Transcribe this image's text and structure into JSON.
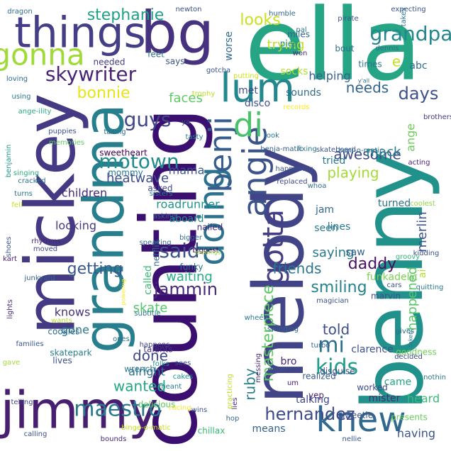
{
  "words": [
    {
      "text": "ella",
      "color": "#25a584",
      "vertical": false
    },
    {
      "text": "benny",
      "color": "#21918c",
      "vertical": true
    },
    {
      "text": "counting",
      "color": "#3a0f6f",
      "vertical": true
    },
    {
      "text": "melody",
      "color": "#414487",
      "vertical": true
    },
    {
      "text": "mickey",
      "color": "#443983",
      "vertical": true
    },
    {
      "text": "jimmy",
      "color": "#481f70",
      "vertical": false
    },
    {
      "text": "grandma",
      "color": "#277f8e",
      "vertical": true
    },
    {
      "text": "things",
      "color": "#433e85",
      "vertical": false
    },
    {
      "text": "bg",
      "color": "#46327e",
      "vertical": false
    },
    {
      "text": "knew",
      "color": "#31688e",
      "vertical": false
    },
    {
      "text": "lum",
      "color": "#23888e",
      "vertical": false
    },
    {
      "text": "angie",
      "color": "#3b528b",
      "vertical": true
    },
    {
      "text": "doing",
      "color": "#2c728e",
      "vertical": true
    },
    {
      "text": "benji",
      "color": "#365d8d",
      "vertical": true
    },
    {
      "text": "gonna",
      "color": "#a0da39",
      "vertical": false
    },
    {
      "text": "di",
      "color": "#4ac16d",
      "vertical": false
    },
    {
      "text": "maestro",
      "color": "#2a788e",
      "vertical": false
    },
    {
      "text": "gotta",
      "color": "#433e85",
      "vertical": true
    },
    {
      "text": "motown",
      "color": "#228c8d",
      "vertical": false
    },
    {
      "text": "skywriter",
      "color": "#482475",
      "vertical": false
    },
    {
      "text": "grandpa",
      "color": "#24868e",
      "vertical": false
    },
    {
      "text": "kids",
      "color": "#1f9e89",
      "vertical": false
    },
    {
      "text": "said",
      "color": "#3b528b",
      "vertical": false
    },
    {
      "text": "mi",
      "color": "#2e6f8e",
      "vertical": false
    },
    {
      "text": "guys",
      "color": "#404688",
      "vertical": false
    },
    {
      "text": "hernandez",
      "color": "#3e4989",
      "vertical": false
    },
    {
      "text": "jammin",
      "color": "#482878",
      "vertical": false
    },
    {
      "text": "stephanie",
      "color": "#1fa187",
      "vertical": false
    },
    {
      "text": "bonnie",
      "color": "#e7e419",
      "vertical": false
    },
    {
      "text": "days",
      "color": "#3b528b",
      "vertical": false
    },
    {
      "text": "masterpiece",
      "color": "#5ec962",
      "vertical": true
    },
    {
      "text": "needs",
      "color": "#33638d",
      "vertical": false
    },
    {
      "text": "looks",
      "color": "#cae11f",
      "vertical": false
    },
    {
      "text": "daddy",
      "color": "#471063",
      "vertical": false
    },
    {
      "text": "told",
      "color": "#3d4e8a",
      "vertical": false
    },
    {
      "text": "getting",
      "color": "#38588c",
      "vertical": false
    },
    {
      "text": "smiling",
      "color": "#26828e",
      "vertical": false
    },
    {
      "text": "friends",
      "color": "#2a768e",
      "vertical": false
    },
    {
      "text": "playing",
      "color": "#a5db36",
      "vertical": false
    },
    {
      "text": "awesome",
      "color": "#3e4989",
      "vertical": false
    },
    {
      "text": "done",
      "color": "#3f4788",
      "vertical": false
    },
    {
      "text": "wanted",
      "color": "#22a785",
      "vertical": false
    },
    {
      "text": "faces",
      "color": "#5ec962",
      "vertical": false
    },
    {
      "text": "happened",
      "color": "#56c667",
      "vertical": true
    },
    {
      "text": "ruby",
      "color": "#26828e",
      "vertical": true
    },
    {
      "text": "trying",
      "color": "#c2df23",
      "vertical": false
    },
    {
      "text": "e",
      "color": "#c8e020",
      "vertical": false
    },
    {
      "text": "ange",
      "color": "#6ccd5a",
      "vertical": true
    },
    {
      "text": "mack",
      "color": "#277f8e",
      "vertical": false
    },
    {
      "text": "merlin",
      "color": "#3b528b",
      "vertical": true
    },
    {
      "text": "heatwave",
      "color": "#3d4e8a",
      "vertical": false
    },
    {
      "text": "children",
      "color": "#482878",
      "vertical": false
    },
    {
      "text": "skate",
      "color": "#52c569",
      "vertical": false
    },
    {
      "text": "mama",
      "color": "#39568c",
      "vertical": false
    },
    {
      "text": "waiting",
      "color": "#26ad81",
      "vertical": false
    },
    {
      "text": "looking",
      "color": "#443a83",
      "vertical": false
    },
    {
      "text": "saying",
      "color": "#29798e",
      "vertical": false
    },
    {
      "text": "came",
      "color": "#21a685",
      "vertical": false
    },
    {
      "text": "heard",
      "color": "#3aba76",
      "vertical": false
    },
    {
      "text": "having",
      "color": "#3b528b",
      "vertical": false
    },
    {
      "text": "alright",
      "color": "#2c728e",
      "vertical": false
    },
    {
      "text": "knows",
      "color": "#46337f",
      "vertical": false
    },
    {
      "text": "abc",
      "color": "#2e6e8e",
      "vertical": false
    },
    {
      "text": "helping",
      "color": "#34618d",
      "vertical": false
    },
    {
      "text": "mister",
      "color": "#472c7a",
      "vertical": false
    },
    {
      "text": "roadrunner",
      "color": "#1f948c",
      "vertical": false
    },
    {
      "text": "funkadelic",
      "color": "#7ad151",
      "vertical": false
    },
    {
      "text": "talking",
      "color": "#3f4788",
      "vertical": false
    },
    {
      "text": "socks",
      "color": "#b5de2b",
      "vertical": false
    },
    {
      "text": "gone",
      "color": "#2a788e",
      "vertical": false
    },
    {
      "text": "disco",
      "color": "#3b528b",
      "vertical": false
    },
    {
      "text": "sounds",
      "color": "#2f6c8e",
      "vertical": false
    },
    {
      "text": "met",
      "color": "#3e4989",
      "vertical": false
    },
    {
      "text": "lines",
      "color": "#2a788e",
      "vertical": false
    },
    {
      "text": "called",
      "color": "#3dbc74",
      "vertical": true
    },
    {
      "text": "turned",
      "color": "#2c728e",
      "vertical": false
    },
    {
      "text": "saw",
      "color": "#33638d",
      "vertical": false
    },
    {
      "text": "aboard",
      "color": "#21918c",
      "vertical": false
    },
    {
      "text": "means",
      "color": "#34618d",
      "vertical": false
    },
    {
      "text": "worse",
      "color": "#2f6b8e",
      "vertical": true
    },
    {
      "text": "tried",
      "color": "#29798e",
      "vertical": false
    },
    {
      "text": "jam",
      "color": "#31688e",
      "vertical": false
    },
    {
      "text": "seen",
      "color": "#29798e",
      "vertical": false
    },
    {
      "text": "clarence",
      "color": "#3b528b",
      "vertical": false
    },
    {
      "text": "bro",
      "color": "#482475",
      "vertical": false
    },
    {
      "text": "ai",
      "color": "#b5de2b",
      "vertical": true
    },
    {
      "text": "says",
      "color": "#3b528b",
      "vertical": false
    },
    {
      "text": "feet",
      "color": "#2e6e8e",
      "vertical": false
    },
    {
      "text": "needed",
      "color": "#433e85",
      "vertical": false
    },
    {
      "text": "miles",
      "color": "#33638d",
      "vertical": false
    },
    {
      "text": "bout",
      "color": "#2e6f8e",
      "vertical": false
    },
    {
      "text": "times",
      "color": "#2a788e",
      "vertical": false
    },
    {
      "text": "pies",
      "color": "#20928c",
      "vertical": false
    },
    {
      "text": "funky",
      "color": "#2c728e",
      "vertical": false
    },
    {
      "text": "asked",
      "color": "#3f4788",
      "vertical": false
    },
    {
      "text": "mommy",
      "color": "#2a788e",
      "vertical": false
    },
    {
      "text": "sweetheart",
      "color": "#440154",
      "vertical": false
    },
    {
      "text": "netflix",
      "color": "#2f6b8e",
      "vertical": true
    },
    {
      "text": "nailed",
      "color": "#472d7b",
      "vertical": false
    },
    {
      "text": "talents",
      "color": "#443983",
      "vertical": false
    },
    {
      "text": "wrench",
      "color": "#2a788e",
      "vertical": false
    },
    {
      "text": "cookies",
      "color": "#2e6f8e",
      "vertical": false
    },
    {
      "text": "skatepark",
      "color": "#277f8e",
      "vertical": false
    },
    {
      "text": "lives",
      "color": "#3a548c",
      "vertical": false
    },
    {
      "text": "delicious",
      "color": "#5ec962",
      "vertical": false
    },
    {
      "text": "goodness",
      "color": "#73d056",
      "vertical": false
    },
    {
      "text": "worked",
      "color": "#3e4989",
      "vertical": false
    },
    {
      "text": "presents",
      "color": "#6ccd5a",
      "vertical": false
    },
    {
      "text": "sweetie",
      "color": "#3d4e8a",
      "vertical": false
    },
    {
      "text": "chillax",
      "color": "#38b977",
      "vertical": false
    },
    {
      "text": "nellie",
      "color": "#39568c",
      "vertical": false
    },
    {
      "text": "yep",
      "color": "#482475",
      "vertical": false
    },
    {
      "text": "marvin",
      "color": "#3b528b",
      "vertical": false
    },
    {
      "text": "realized",
      "color": "#38598c",
      "vertical": false
    },
    {
      "text": "disguise",
      "color": "#3e4989",
      "vertical": false
    },
    {
      "text": "puppies",
      "color": "#3b528b",
      "vertical": false
    },
    {
      "text": "dragon",
      "color": "#2e6f8e",
      "vertical": false
    },
    {
      "text": "loving",
      "color": "#31688e",
      "vertical": false
    },
    {
      "text": "using",
      "color": "#2a788e",
      "vertical": false
    },
    {
      "text": "ange-ility",
      "color": "#25ab82",
      "vertical": false
    },
    {
      "text": "memories",
      "color": "#63cb5f",
      "vertical": false
    },
    {
      "text": "benjamin",
      "color": "#1f9a8a",
      "vertical": true
    },
    {
      "text": "cracked",
      "color": "#2e6e8e",
      "vertical": false
    },
    {
      "text": "singing",
      "color": "#29af7f",
      "vertical": false
    },
    {
      "text": "turns",
      "color": "#2c728e",
      "vertical": false
    },
    {
      "text": "fell",
      "color": "#c2df23",
      "vertical": false
    },
    {
      "text": "rhythms",
      "color": "#482677",
      "vertical": false
    },
    {
      "text": "moved",
      "color": "#404688",
      "vertical": false
    },
    {
      "text": "kart",
      "color": "#481f70",
      "vertical": false
    },
    {
      "text": "shoes",
      "color": "#39568c",
      "vertical": true
    },
    {
      "text": "junkyard",
      "color": "#33638d",
      "vertical": false
    },
    {
      "text": "lights",
      "color": "#482878",
      "vertical": true
    },
    {
      "text": "wants",
      "color": "#b5de2b",
      "vertical": false
    },
    {
      "text": "families",
      "color": "#39568c",
      "vertical": false
    },
    {
      "text": "gave",
      "color": "#a0da39",
      "vertical": false
    },
    {
      "text": "telling",
      "color": "#404688",
      "vertical": false
    },
    {
      "text": "calling",
      "color": "#3b528b",
      "vertical": false
    },
    {
      "text": "bounds",
      "color": "#482878",
      "vertical": false
    },
    {
      "text": "binge-o-matic",
      "color": "#c8e020",
      "vertical": false
    },
    {
      "text": "racing",
      "color": "#fde725",
      "vertical": false
    },
    {
      "text": "hop",
      "color": "#31688e",
      "vertical": false
    },
    {
      "text": "lies",
      "color": "#482475",
      "vertical": true
    },
    {
      "text": "practicing",
      "color": "#bddf26",
      "vertical": true
    },
    {
      "text": "wins",
      "color": "#3b528b",
      "vertical": false
    },
    {
      "text": "meant",
      "color": "#2a788e",
      "vertical": false
    },
    {
      "text": "cakes",
      "color": "#21918c",
      "vertical": false
    },
    {
      "text": "folks",
      "color": "#21918c",
      "vertical": false
    },
    {
      "text": "sees",
      "color": "#3b528b",
      "vertical": false
    },
    {
      "text": "messing",
      "color": "#482878",
      "vertical": true
    },
    {
      "text": "duper",
      "color": "#3b528b",
      "vertical": false
    },
    {
      "text": "um",
      "color": "#48186a",
      "vertical": false
    },
    {
      "text": "decided",
      "color": "#3f4788",
      "vertical": false
    },
    {
      "text": "nothin",
      "color": "#2a788e",
      "vertical": false
    },
    {
      "text": "taken",
      "color": "#2c728e",
      "vertical": true
    },
    {
      "text": "ones",
      "color": "#2e6f8e",
      "vertical": false
    },
    {
      "text": "happens",
      "color": "#3e4989",
      "vertical": false
    },
    {
      "text": "subtitle",
      "color": "#2a788e",
      "vertical": false
    },
    {
      "text": "turbo",
      "color": "#33638d",
      "vertical": false
    },
    {
      "text": "gives",
      "color": "#2e6e8e",
      "vertical": false
    },
    {
      "text": "swinging",
      "color": "#31688e",
      "vertical": false
    },
    {
      "text": "powering",
      "color": "#fde725",
      "vertical": true
    },
    {
      "text": "magician",
      "color": "#3b528b",
      "vertical": false
    },
    {
      "text": "wheels",
      "color": "#2a788e",
      "vertical": false
    },
    {
      "text": "groovy",
      "color": "#35b779",
      "vertical": false
    },
    {
      "text": "kidding",
      "color": "#3b528b",
      "vertical": false
    },
    {
      "text": "quitting",
      "color": "#2a788e",
      "vertical": false
    },
    {
      "text": "cars",
      "color": "#39568c",
      "vertical": false
    },
    {
      "text": "coolest",
      "color": "#8fd744",
      "vertical": false
    },
    {
      "text": "whoa",
      "color": "#2e6e8e",
      "vertical": false
    },
    {
      "text": "replaced",
      "color": "#3e4989",
      "vertical": false
    },
    {
      "text": "happening",
      "color": "#3b528b",
      "vertical": false
    },
    {
      "text": "acting",
      "color": "#482475",
      "vertical": false
    },
    {
      "text": "skateboard",
      "color": "#3b528b",
      "vertical": false
    },
    {
      "text": "benj-o-matic",
      "color": "#2e6e8e",
      "vertical": false
    },
    {
      "text": "benja-matic",
      "color": "#34618d",
      "vertical": false
    },
    {
      "text": "fixing",
      "color": "#2a788e",
      "vertical": false
    },
    {
      "text": "tasty",
      "color": "#26828e",
      "vertical": false
    },
    {
      "text": "took",
      "color": "#2a788e",
      "vertical": false
    },
    {
      "text": "brothers",
      "color": "#443983",
      "vertical": false
    },
    {
      "text": "records",
      "color": "#fde725",
      "vertical": false
    },
    {
      "text": "trophy",
      "color": "#bddf26",
      "vertical": false
    },
    {
      "text": "putting",
      "color": "#d0e11c",
      "vertical": false
    },
    {
      "text": "gotcha",
      "color": "#3b528b",
      "vertical": false
    },
    {
      "text": "ya",
      "color": "#3b528b",
      "vertical": false
    },
    {
      "text": "taking",
      "color": "#2e6f8e",
      "vertical": false
    },
    {
      "text": "asking",
      "color": "#31688e",
      "vertical": false
    },
    {
      "text": "sisters",
      "color": "#2a788e",
      "vertical": false
    },
    {
      "text": "bigger",
      "color": "#31688e",
      "vertical": false
    },
    {
      "text": "biggest",
      "color": "#440154",
      "vertical": false
    },
    {
      "text": "drawings",
      "color": "#93d741",
      "vertical": false
    },
    {
      "text": "speaking",
      "color": "#31688e",
      "vertical": false
    },
    {
      "text": "newton",
      "color": "#3b528b",
      "vertical": false
    },
    {
      "text": "pal",
      "color": "#2a788e",
      "vertical": false
    },
    {
      "text": "humble",
      "color": "#31688e",
      "vertical": false
    },
    {
      "text": "pirate",
      "color": "#3b528b",
      "vertical": false
    },
    {
      "text": "won",
      "color": "#472d7b",
      "vertical": false
    },
    {
      "text": "dennis",
      "color": "#2e6f8e",
      "vertical": false
    },
    {
      "text": "expecting",
      "color": "#3b528b",
      "vertical": false
    },
    {
      "text": "takes",
      "color": "#2a788e",
      "vertical": true
    },
    {
      "text": "y'all",
      "color": "#2c728e",
      "vertical": false
    }
  ]
}
